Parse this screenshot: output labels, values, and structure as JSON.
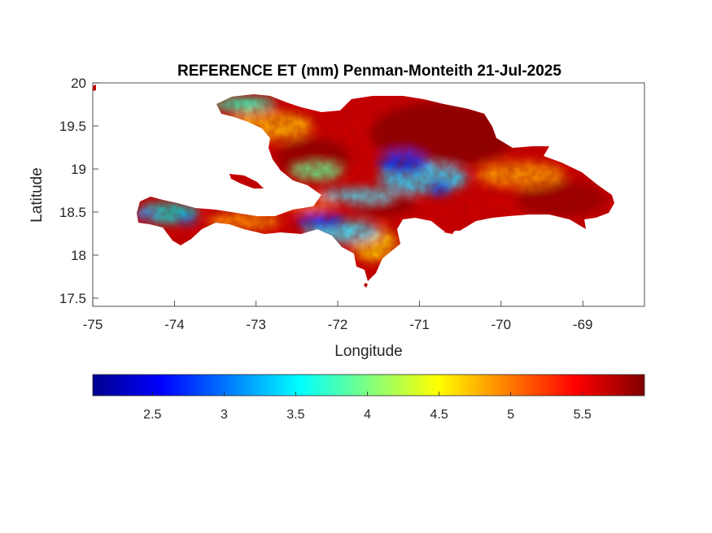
{
  "chart_data": {
    "type": "heatmap",
    "title": "REFERENCE ET (mm) Penman-Monteith 21-Jul-2025",
    "xlabel": "Longitude",
    "ylabel": "Latitude",
    "xlim": [
      -75,
      -68.2
    ],
    "ylim": [
      17.4,
      20
    ],
    "xticks": [
      "-75",
      "-74",
      "-73",
      "-72",
      "-71",
      "-70",
      "-69"
    ],
    "yticks": [
      "17.5",
      "18",
      "18.5",
      "19",
      "19.5",
      "20"
    ],
    "grid": false,
    "colormap": "jet",
    "colorbar": {
      "orientation": "horizontal",
      "location": "below",
      "clim": [
        2.1,
        5.95
      ],
      "ticks": [
        "2.5",
        "3",
        "3.5",
        "4",
        "4.5",
        "5",
        "5.5"
      ]
    }
  }
}
